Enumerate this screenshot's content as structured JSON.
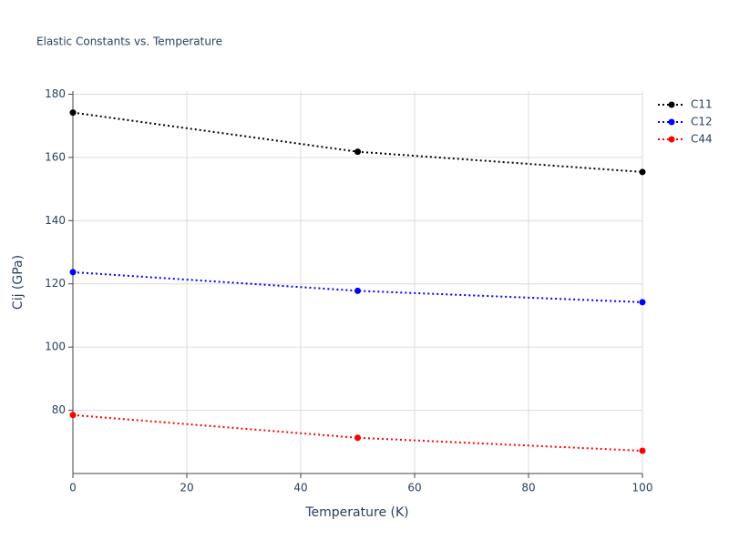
{
  "chart_data": {
    "type": "line",
    "title": "Elastic Constants vs. Temperature",
    "x_label": "Temperature (K)",
    "y_label": "Cij (GPa)",
    "x": [
      0,
      50,
      100
    ],
    "series": [
      {
        "name": "C11",
        "color": "#000000",
        "values": [
          174.2,
          161.8,
          155.4
        ]
      },
      {
        "name": "C12",
        "color": "#0000ff",
        "values": [
          123.7,
          117.8,
          114.2
        ]
      },
      {
        "name": "C44",
        "color": "#ff0000",
        "values": [
          78.5,
          71.3,
          67.2
        ]
      }
    ],
    "xlim": [
      0,
      100
    ],
    "xticks": [
      0,
      20,
      40,
      60,
      80,
      100
    ],
    "ylim": [
      60,
      181
    ],
    "yticks": [
      80,
      100,
      120,
      140,
      160,
      180
    ],
    "grid": true,
    "legend": "right"
  }
}
